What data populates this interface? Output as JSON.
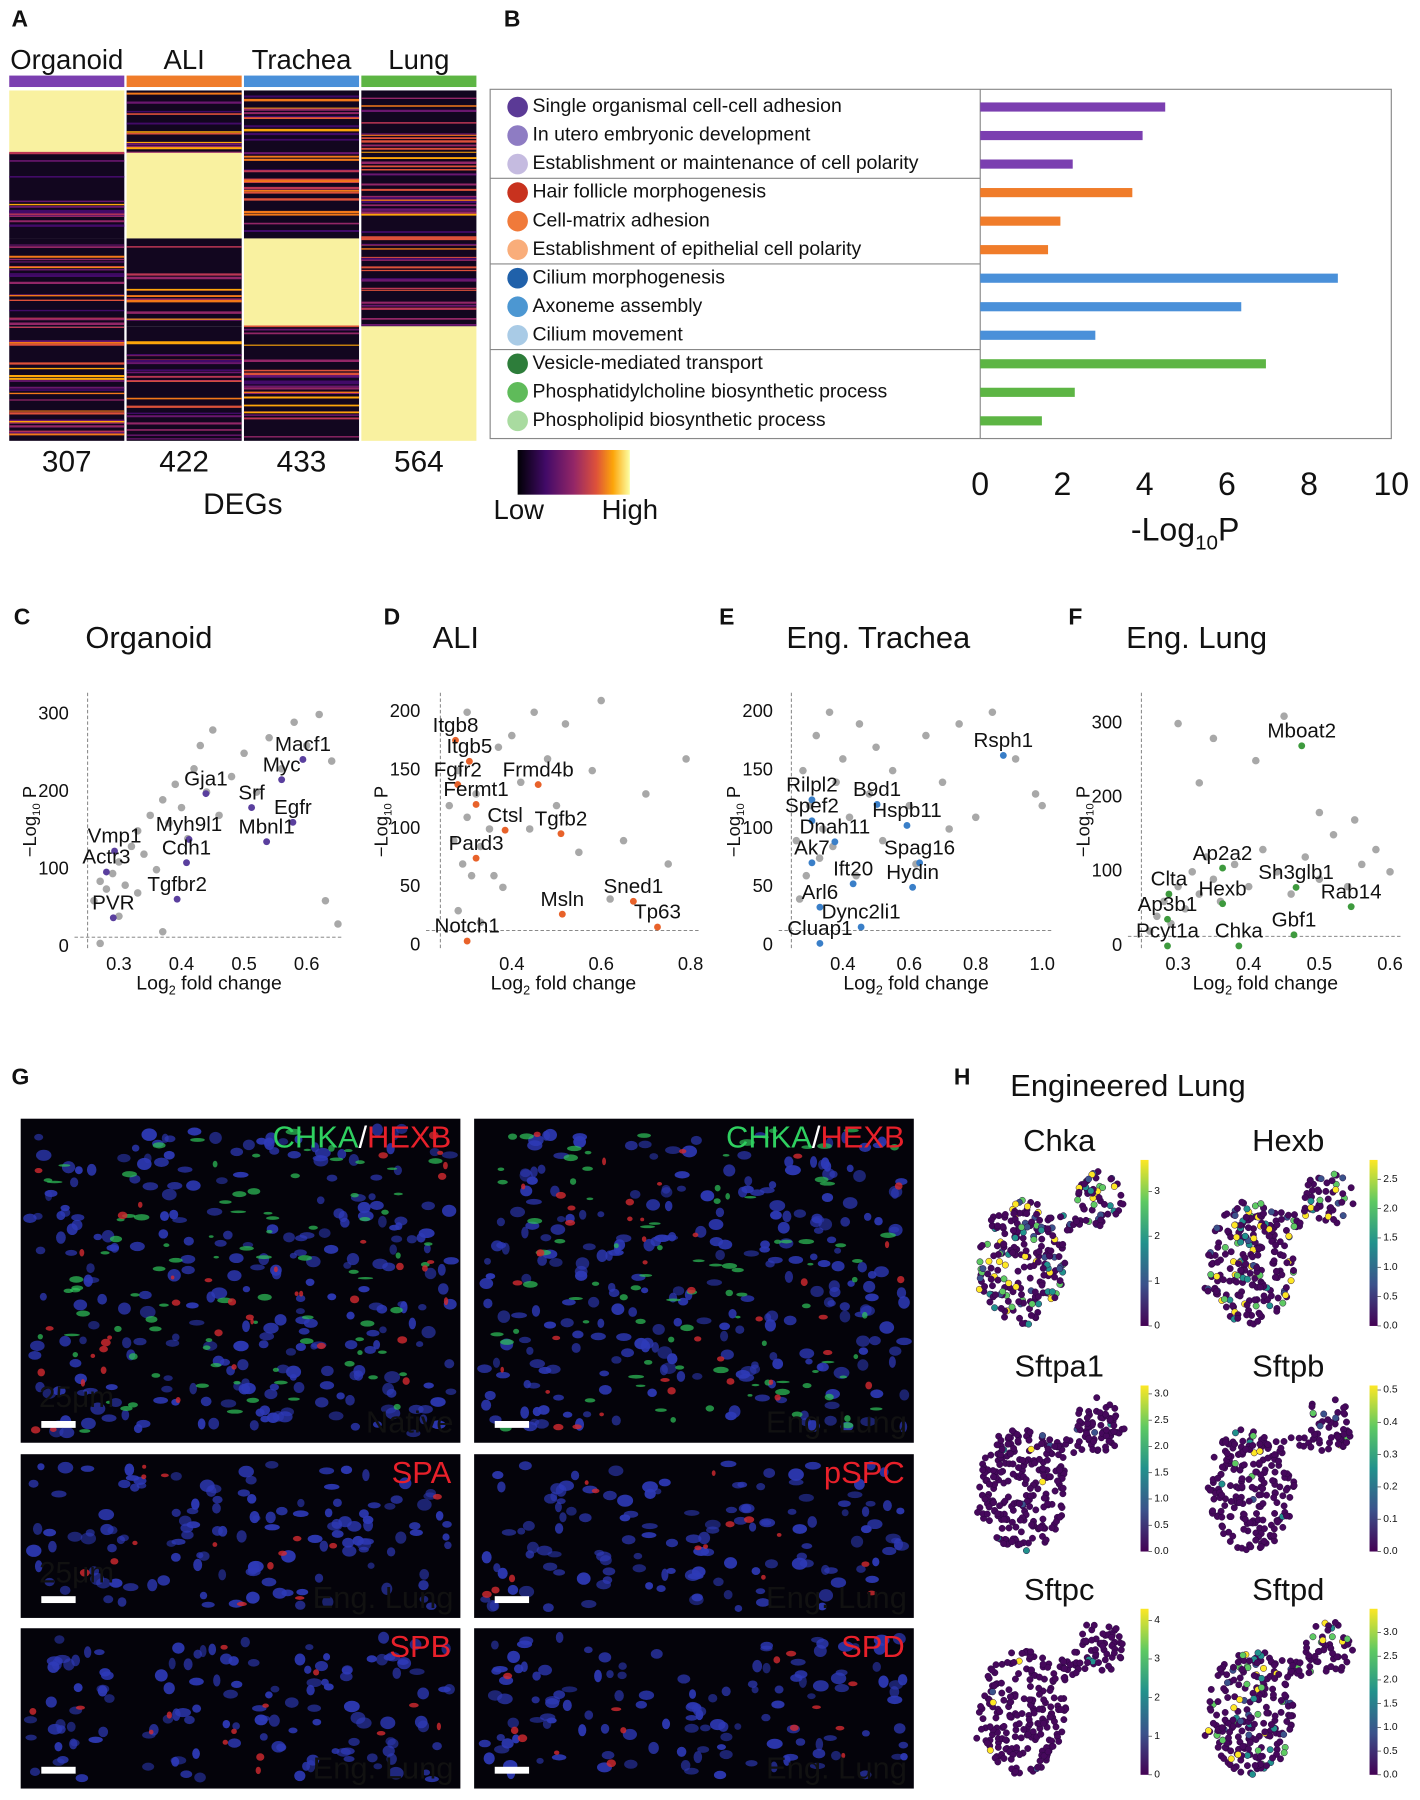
{
  "chart_data": [
    {
      "type": "heatmap",
      "letter": "A",
      "categories": [
        "Organoid",
        "ALI",
        "Trachea",
        "Lung"
      ],
      "colors": [
        "#7b3fb0",
        "#f07c2a",
        "#4a90d9",
        "#5db544"
      ],
      "values": [
        307,
        422,
        433,
        564
      ],
      "xlabel": "DEGs",
      "legend": [
        "Low",
        "High"
      ]
    },
    {
      "type": "bar",
      "letter": "B",
      "categories": [
        "Single organismal cell-cell adhesion",
        "In utero embryonic development",
        "Establishment or maintenance of cell polarity",
        "Hair follicle morphogenesis",
        "Cell-matrix adhesion",
        "Establishment of epithelial cell polarity",
        "Cilium morphogenesis",
        "Axoneme assembly",
        "Cilium movement",
        "Vesicle-mediated transport",
        "Phosphatidylcholine biosynthetic process",
        "Phospholipid biosynthetic process"
      ],
      "values": [
        4.5,
        3.95,
        2.25,
        3.7,
        1.95,
        1.65,
        8.7,
        6.35,
        2.8,
        6.95,
        2.3,
        1.5
      ],
      "colors": [
        "#7b3fb0",
        "#7b3fb0",
        "#7b3fb0",
        "#f07c2a",
        "#f07c2a",
        "#f07c2a",
        "#4a90d9",
        "#4a90d9",
        "#4a90d9",
        "#5db544",
        "#5db544",
        "#5db544"
      ],
      "dot_colors": [
        "#5b3a96",
        "#8e7cc3",
        "#c5bbe0",
        "#c8321e",
        "#f07a3a",
        "#f9ad7a",
        "#2061aa",
        "#4c97d2",
        "#a9cbe6",
        "#2d7d3a",
        "#5fbb5a",
        "#a9dba0"
      ],
      "xlim": [
        0,
        10
      ],
      "xticks": [
        0,
        2,
        4,
        6,
        8,
        10
      ],
      "xlabel": [
        "-Log",
        "10",
        "P"
      ]
    },
    {
      "type": "scatter",
      "letter": "C",
      "title": "Organoid",
      "xlabel": [
        "Log",
        "2",
        " fold change"
      ],
      "ylabel": [
        "−Log",
        "10",
        " P"
      ],
      "xlim": [
        0.229,
        0.659
      ],
      "ylim": [
        -4,
        328
      ],
      "xticks": [
        0.3,
        0.4,
        0.5,
        0.6
      ],
      "yticks": [
        0,
        100,
        200,
        300
      ],
      "cutoff": [
        0.25,
        13
      ],
      "color": "#5a3f9e",
      "genes": [
        {
          "label": "Macf1",
          "x": 0.594,
          "y": 242
        },
        {
          "label": "Myc",
          "x": 0.56,
          "y": 216
        },
        {
          "label": "Gja1",
          "x": 0.439,
          "y": 198
        },
        {
          "label": "Srf",
          "x": 0.512,
          "y": 180
        },
        {
          "label": "Egfr",
          "x": 0.578,
          "y": 161
        },
        {
          "label": "Mbnl1",
          "x": 0.536,
          "y": 136
        },
        {
          "label": "Myh9l1",
          "x": 0.412,
          "y": 139
        },
        {
          "label": "Cdh1",
          "x": 0.408,
          "y": 109
        },
        {
          "label": "Vmp1",
          "x": 0.293,
          "y": 124
        },
        {
          "label": "Actr3",
          "x": 0.28,
          "y": 97
        },
        {
          "label": "Tgfbr2",
          "x": 0.393,
          "y": 62
        },
        {
          "label": "PVR",
          "x": 0.291,
          "y": 38
        }
      ],
      "x": [
        0.26,
        0.27,
        0.28,
        0.29,
        0.3,
        0.31,
        0.32,
        0.33,
        0.34,
        0.35,
        0.36,
        0.37,
        0.38,
        0.39,
        0.4,
        0.41,
        0.42,
        0.43,
        0.44,
        0.45,
        0.46,
        0.48,
        0.5,
        0.52,
        0.54,
        0.56,
        0.58,
        0.6,
        0.62,
        0.64,
        0.63,
        0.65,
        0.27,
        0.37,
        0.3,
        0.33
      ],
      "y": [
        60,
        85,
        75,
        95,
        110,
        80,
        130,
        150,
        120,
        170,
        100,
        190,
        160,
        210,
        180,
        140,
        230,
        260,
        200,
        280,
        170,
        220,
        250,
        200,
        270,
        230,
        290,
        260,
        300,
        240,
        60,
        30,
        5,
        20,
        40,
        70
      ]
    },
    {
      "type": "scatter",
      "letter": "D",
      "title": "ALI",
      "xlabel": [
        "Log",
        "2",
        " fold change"
      ],
      "ylabel": [
        "−Log",
        "10",
        " P"
      ],
      "xlim": [
        0.208,
        0.823
      ],
      "ylim": [
        -4,
        216.7
      ],
      "xticks": [
        0.4,
        0.6,
        0.8
      ],
      "yticks": [
        0,
        50,
        100,
        150,
        200
      ],
      "cutoff": [
        0.24,
        13
      ],
      "color": "#e8622a",
      "genes": [
        {
          "label": "Itgb8",
          "x": 0.274,
          "y": 176
        },
        {
          "label": "Itgb5",
          "x": 0.305,
          "y": 158
        },
        {
          "label": "Fgfr2",
          "x": 0.279,
          "y": 138
        },
        {
          "label": "Frmd4b",
          "x": 0.459,
          "y": 138
        },
        {
          "label": "Fermt1",
          "x": 0.32,
          "y": 121
        },
        {
          "label": "Ctsl",
          "x": 0.385,
          "y": 99
        },
        {
          "label": "Tgfb2",
          "x": 0.51,
          "y": 96
        },
        {
          "label": "Pard3",
          "x": 0.32,
          "y": 75
        },
        {
          "label": "Sned1",
          "x": 0.672,
          "y": 38
        },
        {
          "label": "Msln",
          "x": 0.513,
          "y": 27
        },
        {
          "label": "Tp63",
          "x": 0.726,
          "y": 16
        },
        {
          "label": "Notch1",
          "x": 0.3,
          "y": 4
        }
      ],
      "x": [
        0.26,
        0.27,
        0.28,
        0.29,
        0.3,
        0.31,
        0.32,
        0.33,
        0.35,
        0.37,
        0.38,
        0.4,
        0.42,
        0.45,
        0.48,
        0.5,
        0.52,
        0.55,
        0.58,
        0.6,
        0.65,
        0.7,
        0.75,
        0.79,
        0.28,
        0.3,
        0.33,
        0.36,
        0.44,
        0.62
      ],
      "y": [
        120,
        90,
        150,
        70,
        110,
        60,
        130,
        85,
        100,
        170,
        50,
        180,
        140,
        200,
        160,
        120,
        190,
        80,
        150,
        210,
        90,
        130,
        70,
        160,
        30,
        200,
        20,
        60,
        100,
        40
      ]
    },
    {
      "type": "scatter",
      "letter": "E",
      "title": "Eng. Trachea",
      "xlabel": [
        "Log",
        "2",
        " fold change"
      ],
      "ylabel": [
        "−Log",
        "10",
        " P"
      ],
      "xlim": [
        0.207,
        1.034
      ],
      "ylim": [
        -4,
        216.7
      ],
      "xticks": [
        0.4,
        0.6,
        0.8,
        {
          "value": 1,
          "label": "1.0"
        }
      ],
      "yticks": [
        0,
        50,
        100,
        150,
        200
      ],
      "cutoff": [
        0.245,
        13
      ],
      "color": "#3a7fc8",
      "genes": [
        {
          "label": "Rsph1",
          "x": 0.883,
          "y": 163
        },
        {
          "label": "Rilpl2",
          "x": 0.307,
          "y": 125
        },
        {
          "label": "B9d1",
          "x": 0.503,
          "y": 121
        },
        {
          "label": "Spef2",
          "x": 0.307,
          "y": 107
        },
        {
          "label": "Hspb11",
          "x": 0.593,
          "y": 103
        },
        {
          "label": "Dnah11",
          "x": 0.376,
          "y": 89
        },
        {
          "label": "Ak7",
          "x": 0.307,
          "y": 71
        },
        {
          "label": "Spag16",
          "x": 0.631,
          "y": 71
        },
        {
          "label": "Ift20",
          "x": 0.431,
          "y": 53
        },
        {
          "label": "Hydin",
          "x": 0.61,
          "y": 50
        },
        {
          "label": "Arl6",
          "x": 0.331,
          "y": 33
        },
        {
          "label": "Dync2li1",
          "x": 0.455,
          "y": 16
        },
        {
          "label": "Cluap1",
          "x": 0.331,
          "y": 2
        }
      ],
      "x": [
        0.26,
        0.28,
        0.3,
        0.32,
        0.34,
        0.36,
        0.38,
        0.4,
        0.42,
        0.45,
        0.48,
        0.5,
        0.55,
        0.6,
        0.65,
        0.7,
        0.75,
        0.8,
        0.85,
        0.92,
        0.98,
        0.27,
        0.29,
        0.33,
        0.37,
        0.44,
        0.52,
        0.62,
        0.72,
        1.0
      ],
      "y": [
        90,
        150,
        120,
        180,
        100,
        200,
        140,
        160,
        110,
        190,
        130,
        170,
        150,
        120,
        180,
        140,
        190,
        110,
        200,
        160,
        130,
        40,
        60,
        75,
        85,
        60,
        90,
        70,
        100,
        120
      ]
    },
    {
      "type": "scatter",
      "letter": "F",
      "title": "Eng. Lung",
      "xlabel": [
        "Log",
        "2",
        " fold change"
      ],
      "ylabel": [
        "−Log",
        "10",
        " P"
      ],
      "xlim": [
        0.229,
        0.618
      ],
      "ylim": [
        -6,
        341.6
      ],
      "xticks": [
        0.3,
        0.4,
        0.5,
        0.6
      ],
      "yticks": [
        0,
        100,
        200,
        300
      ],
      "cutoff": [
        0.248,
        13
      ],
      "color": "#3e9a3e",
      "genes": [
        {
          "label": "Mboat2",
          "x": 0.475,
          "y": 270
        },
        {
          "label": "Ap2a2",
          "x": 0.363,
          "y": 105
        },
        {
          "label": "Sh3glb1",
          "x": 0.467,
          "y": 79
        },
        {
          "label": "Clta",
          "x": 0.287,
          "y": 70
        },
        {
          "label": "Hexb",
          "x": 0.363,
          "y": 57
        },
        {
          "label": "Rab14",
          "x": 0.545,
          "y": 53
        },
        {
          "label": "Ap3b1",
          "x": 0.285,
          "y": 36
        },
        {
          "label": "Gbf1",
          "x": 0.464,
          "y": 15
        },
        {
          "label": "Pcyt1a",
          "x": 0.285,
          "y": 0
        },
        {
          "label": "Chka",
          "x": 0.386,
          "y": 0
        }
      ],
      "x": [
        0.26,
        0.27,
        0.28,
        0.29,
        0.3,
        0.31,
        0.32,
        0.33,
        0.34,
        0.35,
        0.36,
        0.38,
        0.4,
        0.42,
        0.44,
        0.46,
        0.48,
        0.5,
        0.52,
        0.54,
        0.56,
        0.58,
        0.6,
        0.3,
        0.35,
        0.41,
        0.45,
        0.5,
        0.55,
        0.33
      ],
      "y": [
        20,
        40,
        60,
        30,
        80,
        50,
        100,
        70,
        120,
        90,
        60,
        110,
        80,
        130,
        100,
        70,
        120,
        90,
        150,
        80,
        110,
        130,
        100,
        300,
        280,
        250,
        310,
        180,
        170,
        220
      ]
    }
  ],
  "panel_g": {
    "letter": "G",
    "images": [
      {
        "markers": [
          {
            "text": "CHKA",
            "color": "#2fd060"
          },
          {
            "text": "/",
            "color": "#ffffff"
          },
          {
            "text": "HEXB",
            "color": "#e8202a"
          }
        ],
        "label": "Native",
        "scale": "25μm"
      },
      {
        "markers": [
          {
            "text": "CHKA",
            "color": "#2fd060"
          },
          {
            "text": "/",
            "color": "#ffffff"
          },
          {
            "text": "HEXB",
            "color": "#e8202a"
          }
        ],
        "label": "Eng. Lung"
      },
      {
        "markers": [
          {
            "text": "SPA",
            "color": "#e8202a"
          }
        ],
        "label": "Eng. Lung",
        "scale": "25μm"
      },
      {
        "markers": [
          {
            "text": "pSPC",
            "color": "#e8202a"
          }
        ],
        "label": "Eng. Lung"
      },
      {
        "markers": [
          {
            "text": "SPB",
            "color": "#e8202a"
          }
        ],
        "label": "Eng. Lung"
      },
      {
        "markers": [
          {
            "text": "SPD",
            "color": "#e8202a"
          }
        ],
        "label": "Eng. Lung"
      }
    ]
  },
  "panel_h": {
    "letter": "H",
    "title": "Engineered Lung",
    "plots": [
      {
        "gene": "Chka",
        "clim": [
          0,
          3.7
        ],
        "ticks": [
          0,
          1,
          2,
          3
        ]
      },
      {
        "gene": "Hexb",
        "clim": [
          0,
          2.83
        ],
        "ticks": [
          {
            "value": 0,
            "label": "0.0"
          },
          0.5,
          {
            "value": 1,
            "label": "1.0"
          },
          1.5,
          {
            "value": 2,
            "label": "2.0"
          },
          2.5
        ]
      },
      {
        "gene": "Sftpa1",
        "clim": [
          0,
          3.16
        ],
        "ticks": [
          {
            "value": 0,
            "label": "0.0"
          },
          0.5,
          {
            "value": 1,
            "label": "1.0"
          },
          1.5,
          {
            "value": 2,
            "label": "2.0"
          },
          2.5,
          {
            "value": 3,
            "label": "3.0"
          }
        ]
      },
      {
        "gene": "Sftpb",
        "clim": [
          0,
          0.514
        ],
        "ticks": [
          {
            "value": 0,
            "label": "0.0"
          },
          0.1,
          0.2,
          0.3,
          0.4,
          0.5
        ]
      },
      {
        "gene": "Sftpc",
        "clim": [
          0,
          4.3
        ],
        "ticks": [
          0,
          1,
          2,
          3,
          4
        ]
      },
      {
        "gene": "Sftpd",
        "clim": [
          0,
          3.5
        ],
        "ticks": [
          {
            "value": 0,
            "label": "0.0"
          },
          0.5,
          {
            "value": 1,
            "label": "1.0"
          },
          1.5,
          {
            "value": 2,
            "label": "2.0"
          },
          2.5,
          {
            "value": 3,
            "label": "3.0"
          }
        ]
      }
    ]
  }
}
